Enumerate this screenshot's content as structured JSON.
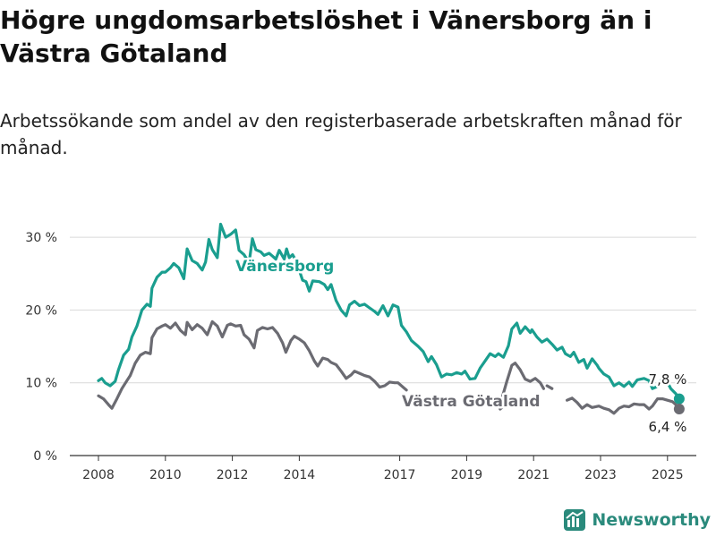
{
  "title": "Högre ungdomsarbetslöshet i Vänersborg än i Västra Götaland",
  "subtitle": "Arbetssökande som andel av den registerbaserade arbetskraften månad för månad.",
  "brand": {
    "name": "Newsworthy",
    "icon": "newsworthy-logo-icon"
  },
  "colors": {
    "vanersborg": "#1a9e8f",
    "vastra_gotaland": "#6b6b72",
    "grid": "#d9d9d9",
    "axis": "#333333"
  },
  "chart_data": {
    "type": "line",
    "y_ticks": [
      "0 %",
      "10 %",
      "20 %",
      "30 %"
    ],
    "y_tick_values": [
      0,
      10,
      20,
      30
    ],
    "x_ticks": [
      "2008",
      "2010",
      "2012",
      "2014",
      "2017",
      "2019",
      "2021",
      "2023",
      "2025"
    ],
    "x_tick_values": [
      2008,
      2010,
      2012,
      2014,
      2017,
      2019,
      2021,
      2023,
      2025
    ],
    "ylim": [
      0,
      32
    ],
    "xlim": [
      2007.5,
      2026.2
    ],
    "grid": true,
    "series": [
      {
        "name": "Vänersborg",
        "label": "Vänersborg",
        "end_label": "7,8 %",
        "end_value": 7.8,
        "points": [
          [
            2008.0,
            10.3
          ],
          [
            2008.1,
            10.6
          ],
          [
            2008.2,
            10.0
          ],
          [
            2008.35,
            9.6
          ],
          [
            2008.5,
            10.2
          ],
          [
            2008.6,
            11.8
          ],
          [
            2008.75,
            13.8
          ],
          [
            2008.9,
            14.6
          ],
          [
            2009.0,
            16.3
          ],
          [
            2009.15,
            17.8
          ],
          [
            2009.3,
            20.0
          ],
          [
            2009.45,
            20.8
          ],
          [
            2009.55,
            20.5
          ],
          [
            2009.6,
            23.0
          ],
          [
            2009.75,
            24.5
          ],
          [
            2009.9,
            25.2
          ],
          [
            2010.0,
            25.2
          ],
          [
            2010.15,
            25.8
          ],
          [
            2010.25,
            26.4
          ],
          [
            2010.4,
            25.8
          ],
          [
            2010.55,
            24.3
          ],
          [
            2010.65,
            28.4
          ],
          [
            2010.8,
            26.8
          ],
          [
            2010.95,
            26.4
          ],
          [
            2011.1,
            25.5
          ],
          [
            2011.2,
            26.6
          ],
          [
            2011.3,
            29.7
          ],
          [
            2011.4,
            28.3
          ],
          [
            2011.55,
            27.2
          ],
          [
            2011.65,
            31.8
          ],
          [
            2011.8,
            30.0
          ],
          [
            2011.95,
            30.4
          ],
          [
            2012.1,
            31.0
          ],
          [
            2012.2,
            28.2
          ],
          [
            2012.35,
            27.6
          ],
          [
            2012.5,
            26.5
          ],
          [
            2012.6,
            29.8
          ],
          [
            2012.7,
            28.3
          ],
          [
            2012.85,
            28.0
          ],
          [
            2012.95,
            27.5
          ],
          [
            2013.1,
            27.8
          ],
          [
            2013.2,
            27.4
          ],
          [
            2013.3,
            27.0
          ],
          [
            2013.4,
            28.2
          ],
          [
            2013.55,
            27.0
          ],
          [
            2013.62,
            28.4
          ],
          [
            2013.7,
            27.2
          ],
          [
            2013.8,
            27.6
          ],
          [
            2013.9,
            26.8
          ],
          [
            2014.1,
            24.1
          ],
          [
            2014.2,
            23.9
          ],
          [
            2014.3,
            22.6
          ],
          [
            2014.4,
            24.0
          ],
          [
            2014.6,
            23.9
          ],
          [
            2014.75,
            23.5
          ],
          [
            2014.85,
            22.8
          ],
          [
            2014.95,
            23.5
          ],
          [
            2015.1,
            21.3
          ],
          [
            2015.25,
            20.0
          ],
          [
            2015.4,
            19.2
          ],
          [
            2015.5,
            20.7
          ],
          [
            2015.65,
            21.2
          ],
          [
            2015.8,
            20.6
          ],
          [
            2015.95,
            20.8
          ],
          [
            2016.1,
            20.3
          ],
          [
            2016.25,
            19.8
          ],
          [
            2016.35,
            19.4
          ],
          [
            2016.5,
            20.6
          ],
          [
            2016.65,
            19.2
          ],
          [
            2016.8,
            20.7
          ],
          [
            2016.95,
            20.4
          ],
          [
            2017.05,
            17.9
          ],
          [
            2017.2,
            17.0
          ],
          [
            2017.35,
            15.8
          ],
          [
            2017.55,
            15.0
          ],
          [
            2017.7,
            14.3
          ],
          [
            2017.85,
            12.9
          ],
          [
            2017.95,
            13.6
          ],
          [
            2018.1,
            12.5
          ],
          [
            2018.25,
            10.8
          ],
          [
            2018.4,
            11.2
          ],
          [
            2018.55,
            11.1
          ],
          [
            2018.7,
            11.4
          ],
          [
            2018.85,
            11.2
          ],
          [
            2018.95,
            11.6
          ],
          [
            2019.1,
            10.5
          ],
          [
            2019.25,
            10.6
          ],
          [
            2019.4,
            12.0
          ],
          [
            2019.55,
            13.0
          ],
          [
            2019.7,
            14.0
          ],
          [
            2019.85,
            13.6
          ],
          [
            2019.95,
            14.0
          ],
          [
            2020.1,
            13.5
          ],
          [
            2020.25,
            15.1
          ],
          [
            2020.35,
            17.4
          ],
          [
            2020.5,
            18.2
          ],
          [
            2020.6,
            16.8
          ],
          [
            2020.75,
            17.7
          ],
          [
            2020.9,
            16.9
          ],
          [
            2020.95,
            17.3
          ],
          [
            2021.1,
            16.3
          ],
          [
            2021.25,
            15.6
          ],
          [
            2021.4,
            16.0
          ],
          [
            2021.55,
            15.3
          ],
          [
            2021.7,
            14.5
          ],
          [
            2021.85,
            14.9
          ],
          [
            2021.95,
            14.0
          ],
          [
            2022.1,
            13.6
          ],
          [
            2022.2,
            14.2
          ],
          [
            2022.35,
            12.8
          ],
          [
            2022.5,
            13.2
          ],
          [
            2022.6,
            12.0
          ],
          [
            2022.75,
            13.3
          ],
          [
            2022.9,
            12.4
          ],
          [
            2022.95,
            12.0
          ],
          [
            2023.1,
            11.2
          ],
          [
            2023.25,
            10.8
          ],
          [
            2023.4,
            9.6
          ],
          [
            2023.55,
            10.0
          ],
          [
            2023.7,
            9.5
          ],
          [
            2023.85,
            10.1
          ],
          [
            2023.95,
            9.5
          ],
          [
            2024.1,
            10.4
          ],
          [
            2024.3,
            10.6
          ],
          [
            2024.45,
            10.3
          ],
          [
            2024.55,
            9.2
          ],
          [
            2024.7,
            9.5
          ],
          [
            2024.85,
            10.6
          ],
          [
            2024.95,
            10.5
          ],
          [
            2025.1,
            9.2
          ],
          [
            2025.25,
            8.5
          ],
          [
            2025.35,
            7.8
          ]
        ]
      },
      {
        "name": "Västra Götaland",
        "label": "Västra Götaland",
        "end_label": "6,4 %",
        "end_value": 6.4,
        "points": [
          [
            2008.0,
            8.2
          ],
          [
            2008.15,
            7.8
          ],
          [
            2008.3,
            7.0
          ],
          [
            2008.4,
            6.5
          ],
          [
            2008.55,
            7.8
          ],
          [
            2008.7,
            9.2
          ],
          [
            2008.85,
            10.3
          ],
          [
            2008.95,
            11.0
          ],
          [
            2009.1,
            12.7
          ],
          [
            2009.25,
            13.8
          ],
          [
            2009.4,
            14.2
          ],
          [
            2009.55,
            14.0
          ],
          [
            2009.6,
            16.2
          ],
          [
            2009.75,
            17.4
          ],
          [
            2009.9,
            17.8
          ],
          [
            2010.0,
            18.0
          ],
          [
            2010.15,
            17.5
          ],
          [
            2010.3,
            18.2
          ],
          [
            2010.45,
            17.2
          ],
          [
            2010.6,
            16.6
          ],
          [
            2010.65,
            18.3
          ],
          [
            2010.8,
            17.3
          ],
          [
            2010.95,
            18.0
          ],
          [
            2011.1,
            17.5
          ],
          [
            2011.25,
            16.6
          ],
          [
            2011.4,
            18.4
          ],
          [
            2011.55,
            17.8
          ],
          [
            2011.7,
            16.3
          ],
          [
            2011.85,
            17.9
          ],
          [
            2011.95,
            18.1
          ],
          [
            2012.1,
            17.8
          ],
          [
            2012.25,
            17.9
          ],
          [
            2012.35,
            16.6
          ],
          [
            2012.5,
            16.0
          ],
          [
            2012.65,
            14.8
          ],
          [
            2012.75,
            17.2
          ],
          [
            2012.9,
            17.6
          ],
          [
            2013.05,
            17.4
          ],
          [
            2013.2,
            17.6
          ],
          [
            2013.35,
            16.8
          ],
          [
            2013.5,
            15.5
          ],
          [
            2013.6,
            14.2
          ],
          [
            2013.75,
            15.8
          ],
          [
            2013.85,
            16.4
          ],
          [
            2014.0,
            16.0
          ],
          [
            2014.15,
            15.5
          ],
          [
            2014.3,
            14.4
          ],
          [
            2014.45,
            13.0
          ],
          [
            2014.55,
            12.3
          ],
          [
            2014.7,
            13.4
          ],
          [
            2014.85,
            13.2
          ],
          [
            2014.95,
            12.8
          ],
          [
            2015.1,
            12.5
          ],
          [
            2015.25,
            11.6
          ],
          [
            2015.4,
            10.6
          ],
          [
            2015.55,
            11.1
          ],
          [
            2015.65,
            11.6
          ],
          [
            2015.8,
            11.3
          ],
          [
            2015.95,
            11.0
          ],
          [
            2016.1,
            10.8
          ],
          [
            2016.25,
            10.2
          ],
          [
            2016.4,
            9.4
          ],
          [
            2016.55,
            9.6
          ],
          [
            2016.7,
            10.1
          ],
          [
            2016.85,
            10.0
          ],
          [
            2016.95,
            10.0
          ],
          [
            2017.1,
            9.4
          ],
          [
            2017.2,
            9.0
          ]
        ],
        "segments_after_gap": [
          [
            [
              2020.05,
              7.8
            ],
            [
              2020.2,
              10.2
            ],
            [
              2020.35,
              12.4
            ],
            [
              2020.45,
              12.7
            ],
            [
              2020.6,
              11.8
            ],
            [
              2020.75,
              10.5
            ],
            [
              2020.9,
              10.2
            ],
            [
              2021.05,
              10.6
            ],
            [
              2021.2,
              10.0
            ],
            [
              2021.3,
              9.2
            ]
          ],
          [
            [
              2021.4,
              9.6
            ],
            [
              2021.55,
              9.2
            ]
          ],
          [
            [
              2022.0,
              7.6
            ],
            [
              2022.15,
              7.9
            ],
            [
              2022.3,
              7.3
            ],
            [
              2022.45,
              6.5
            ],
            [
              2022.6,
              7.0
            ],
            [
              2022.75,
              6.6
            ],
            [
              2022.95,
              6.8
            ],
            [
              2023.1,
              6.5
            ],
            [
              2023.25,
              6.3
            ],
            [
              2023.4,
              5.8
            ],
            [
              2023.55,
              6.5
            ],
            [
              2023.7,
              6.8
            ],
            [
              2023.85,
              6.7
            ],
            [
              2024.0,
              7.1
            ],
            [
              2024.15,
              7.0
            ],
            [
              2024.3,
              7.0
            ],
            [
              2024.45,
              6.4
            ],
            [
              2024.55,
              6.8
            ],
            [
              2024.7,
              7.8
            ],
            [
              2024.85,
              7.8
            ],
            [
              2025.0,
              7.6
            ],
            [
              2025.15,
              7.4
            ],
            [
              2025.25,
              7.0
            ],
            [
              2025.35,
              6.4
            ]
          ]
        ],
        "fragment_near_label": [
          [
            2020.0,
            6.4
          ],
          [
            2020.1,
            6.8
          ]
        ]
      }
    ]
  }
}
